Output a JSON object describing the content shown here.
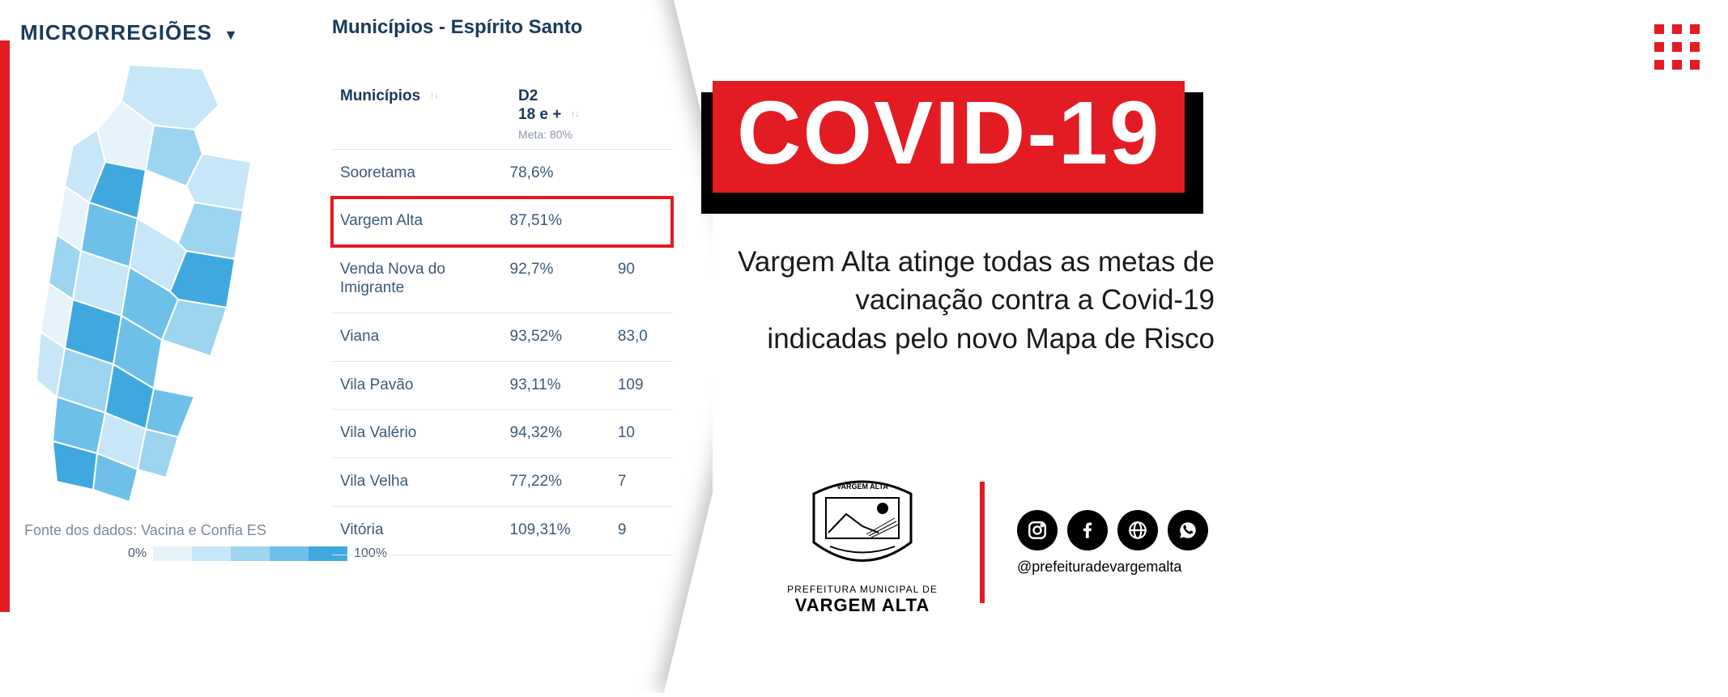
{
  "colors": {
    "brand_red": "#e31b23",
    "dark_blue": "#1a3a5c",
    "text_gray": "#7a8a9a",
    "cell_blue": "#3a5a7a",
    "black": "#000000",
    "white": "#ffffff",
    "border": "#e0e6ec"
  },
  "map_panel": {
    "dropdown_label": "MICRORREGIÕES",
    "data_source": "Fonte dos dados: Vacina e Confia ES",
    "legend_min": "0%",
    "legend_max": "100%",
    "legend_colors": [
      "#e6f3fb",
      "#c7e6f7",
      "#9dd4f0",
      "#6fc0e8",
      "#3fa9df"
    ]
  },
  "table": {
    "title": "Municípios - Espírito Santo",
    "col_muni": "Municípios",
    "col_d2_line1": "D2",
    "col_d2_line2": "18 e +",
    "col_d2_meta": "Meta: 80%",
    "rows": [
      {
        "name": "Sooretama",
        "val": "78,6%",
        "extra": "",
        "highlighted": false
      },
      {
        "name": "Vargem Alta",
        "val": "87,51%",
        "extra": "",
        "highlighted": true
      },
      {
        "name": "Venda Nova do Imigrante",
        "val": "92,7%",
        "extra": "90",
        "highlighted": false
      },
      {
        "name": "Viana",
        "val": "93,52%",
        "extra": "83,0",
        "highlighted": false
      },
      {
        "name": "Vila Pavão",
        "val": "93,11%",
        "extra": "109",
        "highlighted": false
      },
      {
        "name": "Vila Valério",
        "val": "94,32%",
        "extra": "10",
        "highlighted": false
      },
      {
        "name": "Vila Velha",
        "val": "77,22%",
        "extra": "7",
        "highlighted": false
      },
      {
        "name": "Vitória",
        "val": "109,31%",
        "extra": "9",
        "highlighted": false
      }
    ]
  },
  "right": {
    "badge": "COVID-19",
    "headline": "Vargem Alta atinge todas as metas de vacinação contra a Covid-19 indicadas pelo novo Mapa de Risco",
    "seal_top": "VARGEM ALTA",
    "seal_line1": "PREFEITURA MUNICIPAL DE",
    "seal_line2": "VARGEM ALTA",
    "social_handle": "@prefeituradevargemalta"
  }
}
